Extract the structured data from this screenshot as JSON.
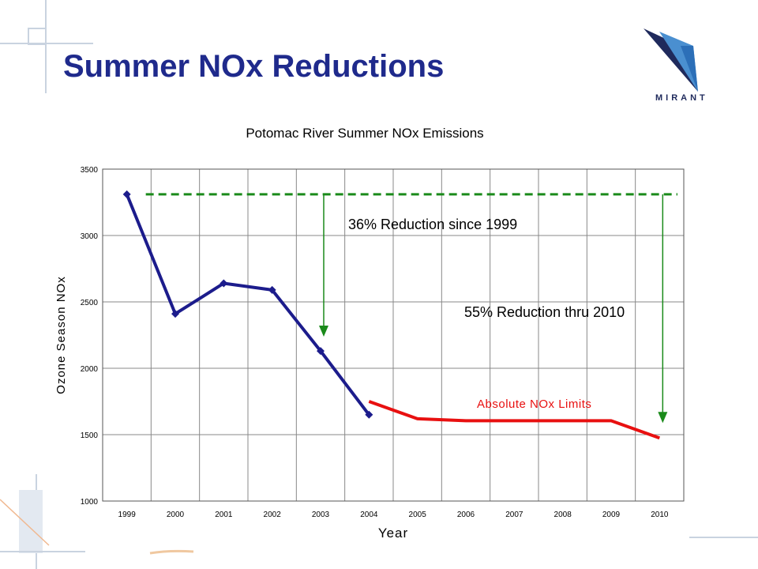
{
  "slide": {
    "title": "Summer NOx Reductions",
    "logo_text": "MIRANT"
  },
  "colors": {
    "title": "#1f2a8c",
    "emissions_series": "#1c1c8c",
    "limits_series": "#e81010",
    "reference_line": "#1a8a1a",
    "grid": "#888888"
  },
  "chart_data": {
    "type": "line",
    "title": "Potomac River Summer NOx Emissions",
    "xlabel": "Year",
    "ylabel": "Ozone Season NOx",
    "categories": [
      "1999",
      "2000",
      "2001",
      "2002",
      "2003",
      "2004",
      "2005",
      "2006",
      "2007",
      "2008",
      "2009",
      "2010"
    ],
    "ylim": [
      1000,
      3500
    ],
    "yticks": [
      1000,
      1500,
      2000,
      2500,
      3000,
      3500
    ],
    "grid": "vertical and horizontal",
    "series": [
      {
        "values": [
          3310,
          2410,
          2640,
          2590,
          2130,
          1650,
          null,
          null,
          null,
          null,
          null,
          null
        ],
        "color": "#1c1c8c",
        "marker": "diamond"
      },
      {
        "name": "Absolute NOx Limits",
        "values": [
          null,
          null,
          null,
          null,
          null,
          1750,
          1620,
          1605,
          1605,
          1605,
          1605,
          1475
        ],
        "color": "#e81010",
        "marker": "none"
      }
    ],
    "reference_line": {
      "value": 3310,
      "from": "1999",
      "to": "2010",
      "style": "dashed",
      "color": "#1a8a1a"
    },
    "annotations": [
      {
        "text": "36% Reduction since 1999",
        "arrow_at": "2003",
        "arrow_from": 3310,
        "arrow_to": 2250
      },
      {
        "text": "55% Reduction thru 2010",
        "arrow_at": "2010",
        "arrow_from": 3310,
        "arrow_to": 1600
      }
    ]
  }
}
